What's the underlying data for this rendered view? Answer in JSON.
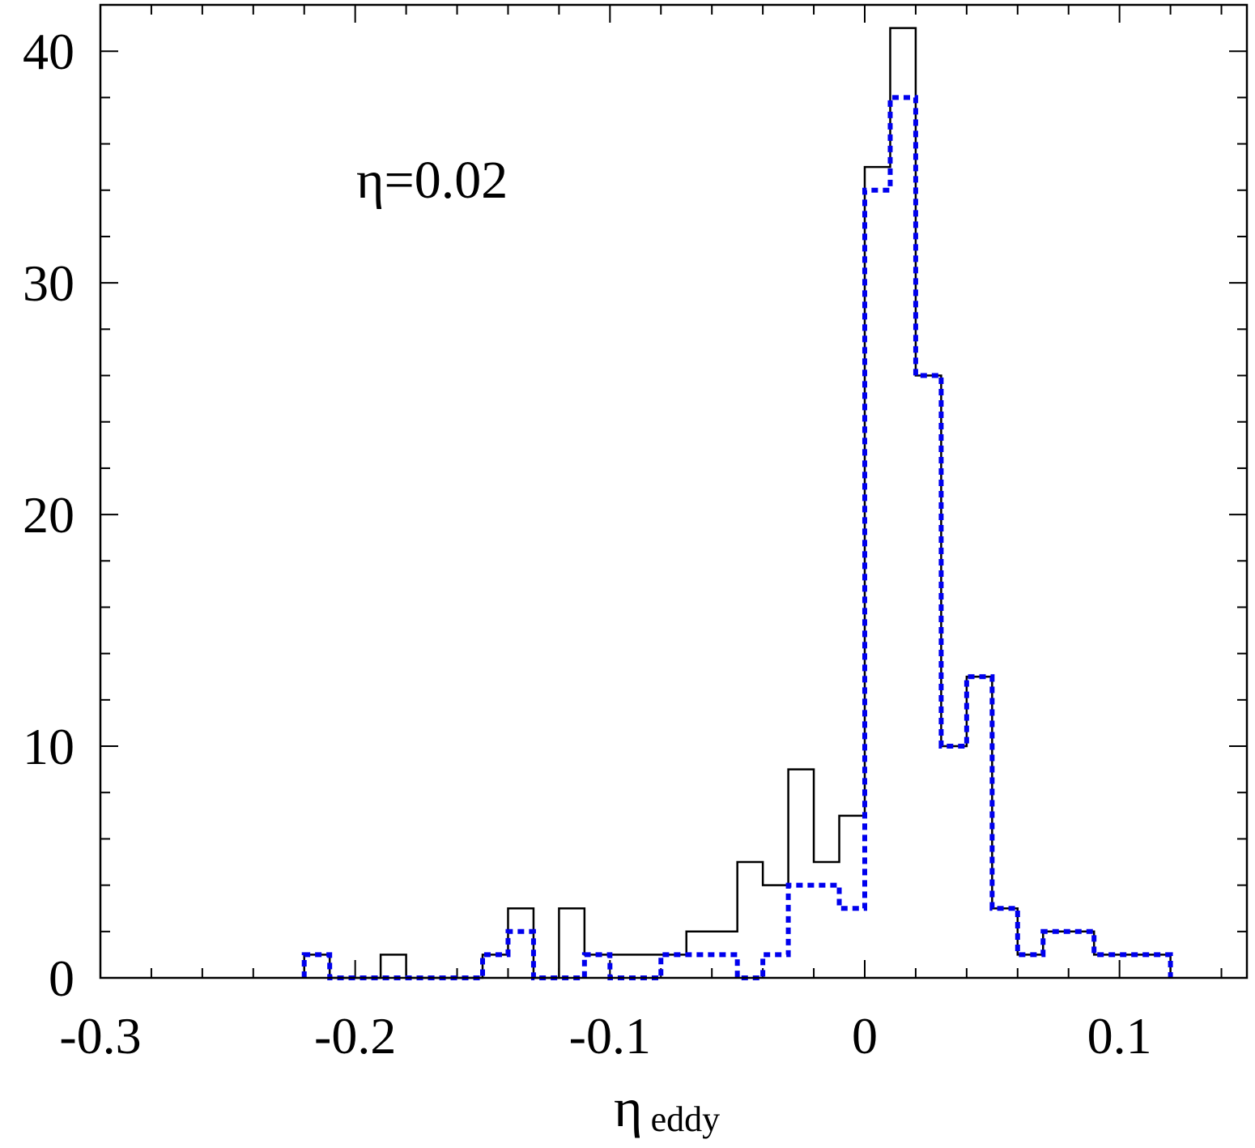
{
  "chart_data": {
    "type": "histogram-step",
    "xlim": [
      -0.3,
      0.15
    ],
    "ylim": [
      0,
      42
    ],
    "xticks": [
      -0.3,
      -0.2,
      -0.1,
      0,
      0.1
    ],
    "xtick_labels": [
      "-0.3",
      "-0.2",
      "-0.1",
      "0",
      "0.1"
    ],
    "yticks": [
      0,
      10,
      20,
      30,
      40
    ],
    "ytick_labels": [
      "0",
      "10",
      "20",
      "30",
      "40"
    ],
    "xlabel": {
      "main": "η",
      "sub": "eddy"
    },
    "ylabel": "",
    "annotation": "η=0.02",
    "grid": false,
    "series": [
      {
        "style": "solid",
        "color": "#000000",
        "edges": [
          -0.22,
          -0.21,
          -0.2,
          -0.19,
          -0.18,
          -0.17,
          -0.16,
          -0.15,
          -0.14,
          -0.13,
          -0.12,
          -0.11,
          -0.1,
          -0.09,
          -0.08,
          -0.07,
          -0.06,
          -0.05,
          -0.04,
          -0.03,
          -0.02,
          -0.01,
          0,
          0.01,
          0.02,
          0.03,
          0.04,
          0.05,
          0.06,
          0.07,
          0.08,
          0.09,
          0.1,
          0.11,
          0.12
        ],
        "values": [
          1,
          0,
          0,
          1,
          0,
          0,
          0,
          1,
          3,
          0,
          3,
          1,
          1,
          1,
          1,
          2,
          2,
          5,
          4,
          9,
          5,
          7,
          35,
          41,
          26,
          10,
          13,
          3,
          1,
          2,
          2,
          1,
          1,
          1
        ]
      },
      {
        "style": "dotted",
        "color": "#0000ee",
        "edges": [
          -0.22,
          -0.21,
          -0.2,
          -0.19,
          -0.18,
          -0.17,
          -0.16,
          -0.15,
          -0.14,
          -0.13,
          -0.12,
          -0.11,
          -0.1,
          -0.09,
          -0.08,
          -0.07,
          -0.06,
          -0.05,
          -0.04,
          -0.03,
          -0.02,
          -0.01,
          0,
          0.01,
          0.02,
          0.03,
          0.04,
          0.05,
          0.06,
          0.07,
          0.08,
          0.09,
          0.1,
          0.11,
          0.12
        ],
        "values": [
          1,
          0,
          0,
          0,
          0,
          0,
          0,
          1,
          2,
          0,
          0,
          1,
          0,
          0,
          1,
          1,
          1,
          0,
          1,
          4,
          4,
          3,
          34,
          38,
          26,
          10,
          13,
          3,
          1,
          2,
          2,
          1,
          1,
          1
        ]
      }
    ]
  }
}
